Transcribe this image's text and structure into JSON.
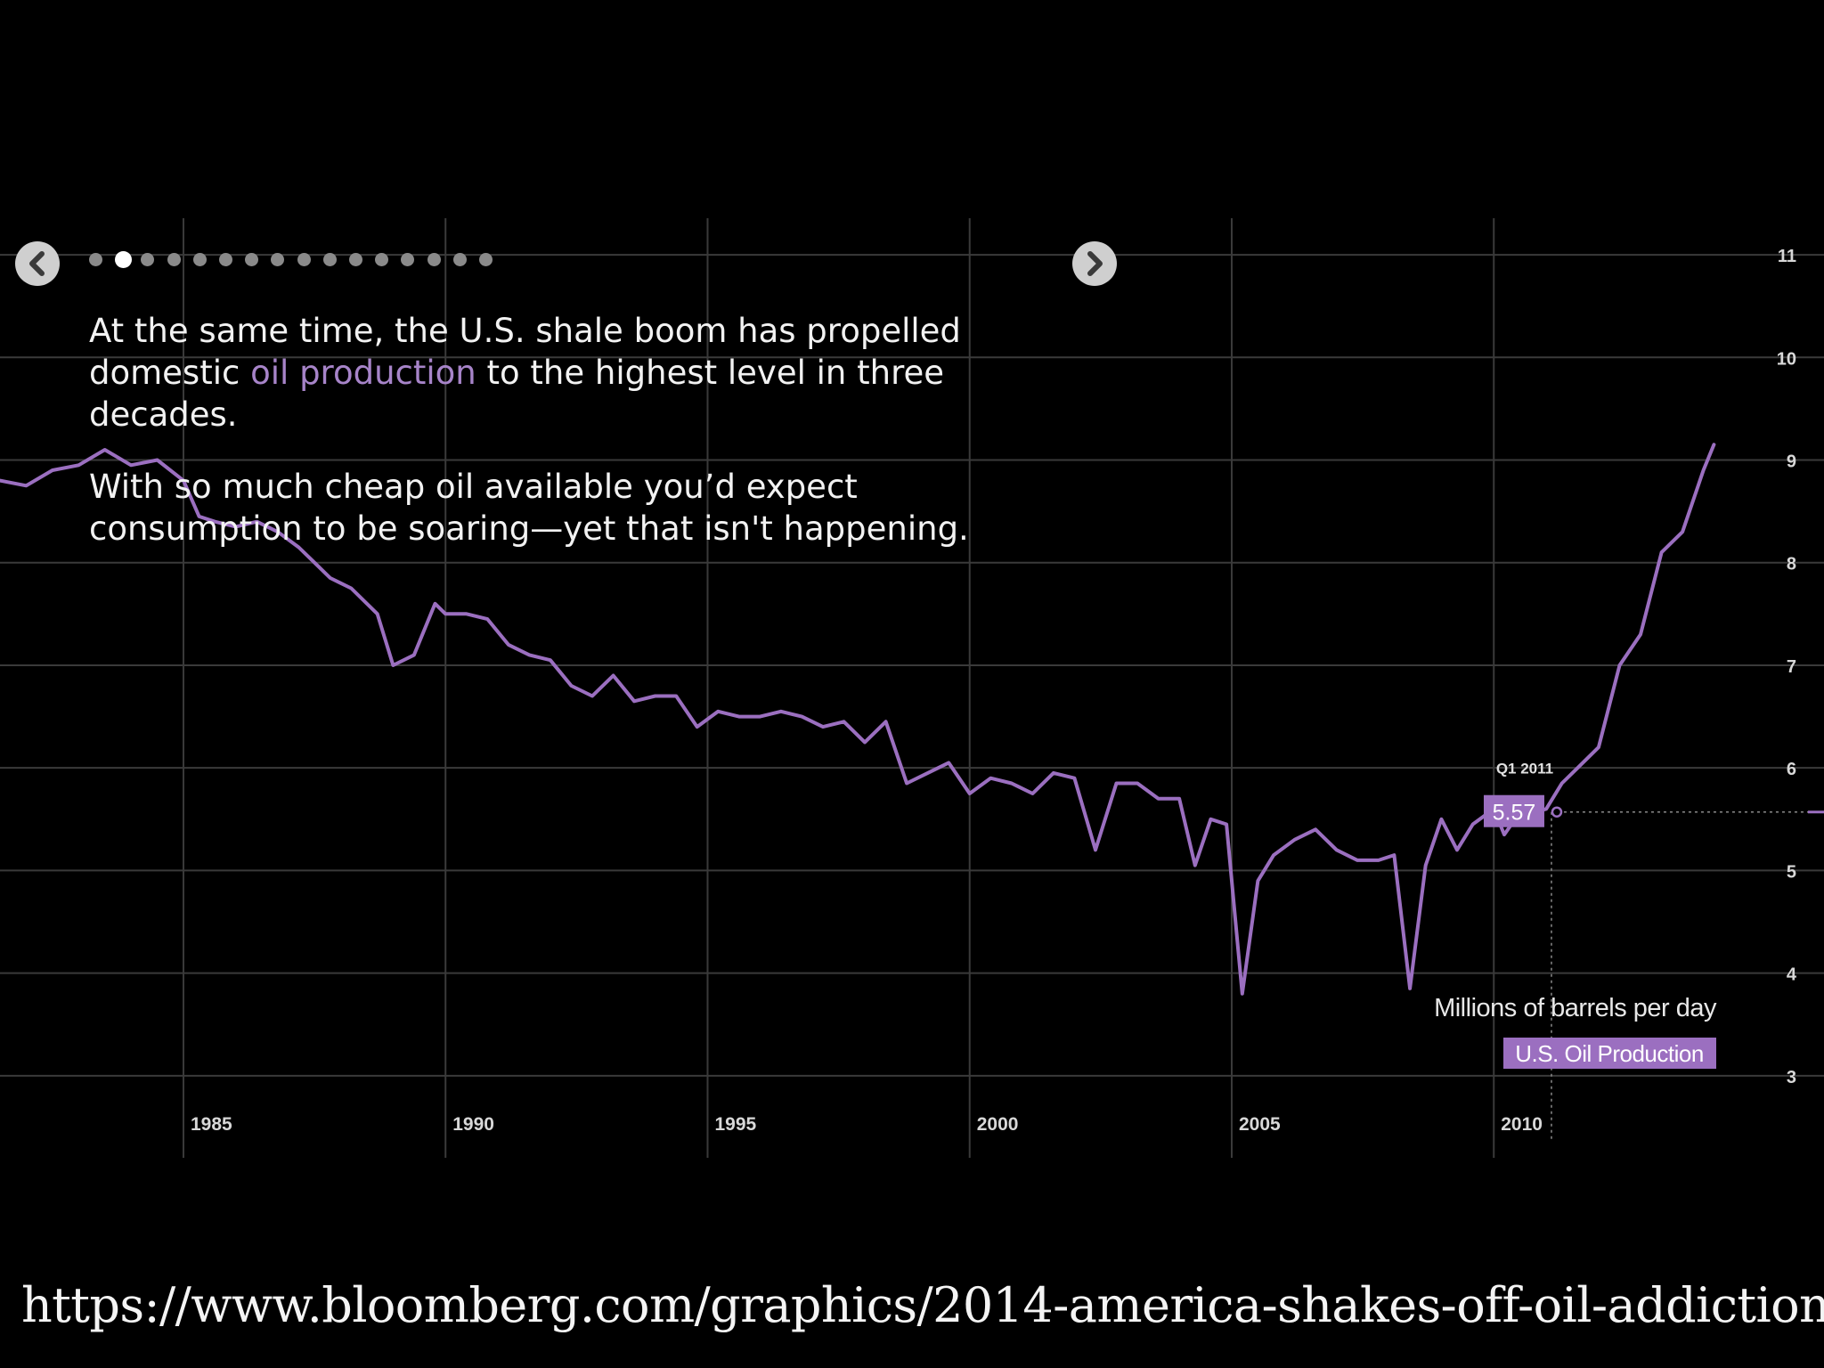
{
  "narrative": {
    "paragraph1_start": "At the same time, the U.S. shale boom has propelled domestic ",
    "paragraph1_highlight": "oil production",
    "paragraph1_end": " to the highest level in three decades.",
    "paragraph2": "With so much cheap oil available you’d expect consumption to be soaring—yet that isn't happening."
  },
  "navigation": {
    "prev_icon": "chevron-left-icon",
    "next_icon": "chevron-right-icon",
    "slide_count": 16,
    "active_slide": 2
  },
  "source_url": "https://www.bloomberg.com/graphics/2014-america-shakes-off-oil-addiction/",
  "colors": {
    "background": "#000000",
    "series": "#9b6fc0",
    "highlight_text": "#a784c9",
    "grid": "#3a3a3a",
    "text": "#f2f2f2"
  },
  "chart_data": {
    "type": "line",
    "title": "",
    "xlabel": "",
    "ylabel": "Millions of barrels per day",
    "xlim": [
      1981.5,
      2016.3
    ],
    "ylim": [
      2.2,
      11.4
    ],
    "x_ticks": [
      1985,
      1990,
      1995,
      2000,
      2005,
      2010
    ],
    "y_ticks": [
      3,
      4,
      5,
      6,
      7,
      8,
      9,
      10,
      11
    ],
    "grid": true,
    "legend": "bottom-right",
    "series": [
      {
        "name": "U.S. Oil Production",
        "x": [
          1981.5,
          1982,
          1982.5,
          1983,
          1983.5,
          1984,
          1984.5,
          1985,
          1985.3,
          1985.6,
          1986,
          1986.4,
          1986.8,
          1987.2,
          1987.5,
          1987.8,
          1988.2,
          1988.7,
          1989,
          1989.4,
          1989.8,
          1990,
          1990.4,
          1990.8,
          1991.2,
          1991.6,
          1992,
          1992.4,
          1992.8,
          1993.2,
          1993.6,
          1994,
          1994.4,
          1994.8,
          1995.2,
          1995.6,
          1996,
          1996.4,
          1996.8,
          1997.2,
          1997.6,
          1998,
          1998.4,
          1998.8,
          1999.2,
          1999.6,
          2000,
          2000.4,
          2000.8,
          2001.2,
          2001.6,
          2002,
          2002.4,
          2002.8,
          2003.2,
          2003.6,
          2004,
          2004.3,
          2004.6,
          2004.9,
          2005.2,
          2005.5,
          2005.8,
          2006.2,
          2006.6,
          2007,
          2007.4,
          2007.8,
          2008.1,
          2008.4,
          2008.7,
          2009,
          2009.3,
          2009.6,
          2010,
          2010.2,
          2010.5,
          2010.8,
          2011,
          2011.3,
          2011.6,
          2012,
          2012.4,
          2012.8,
          2013.2,
          2013.6,
          2014,
          2014.2
        ],
        "y": [
          8.8,
          8.75,
          8.9,
          8.95,
          9.1,
          8.95,
          9.0,
          8.8,
          8.45,
          8.4,
          8.35,
          8.4,
          8.3,
          8.15,
          8.0,
          7.85,
          7.75,
          7.5,
          7.0,
          7.1,
          7.6,
          7.5,
          7.5,
          7.45,
          7.2,
          7.1,
          7.05,
          6.8,
          6.7,
          6.9,
          6.65,
          6.7,
          6.7,
          6.4,
          6.55,
          6.5,
          6.5,
          6.55,
          6.5,
          6.4,
          6.45,
          6.25,
          6.45,
          5.85,
          5.95,
          6.05,
          5.75,
          5.9,
          5.85,
          5.75,
          5.95,
          5.9,
          5.2,
          5.85,
          5.85,
          5.7,
          5.7,
          5.05,
          5.5,
          5.45,
          3.8,
          4.9,
          5.15,
          5.3,
          5.4,
          5.2,
          5.1,
          5.1,
          5.15,
          3.85,
          5.05,
          5.5,
          5.2,
          5.45,
          5.6,
          5.35,
          5.57,
          5.57,
          5.6,
          5.85,
          6.0,
          6.2,
          7.0,
          7.3,
          8.1,
          8.3,
          8.9,
          9.15
        ],
        "color": "#9b6fc0"
      }
    ],
    "annotation": {
      "label": "Q1 2011",
      "value": "5.57",
      "x": 2011.1,
      "y": 5.57
    }
  }
}
